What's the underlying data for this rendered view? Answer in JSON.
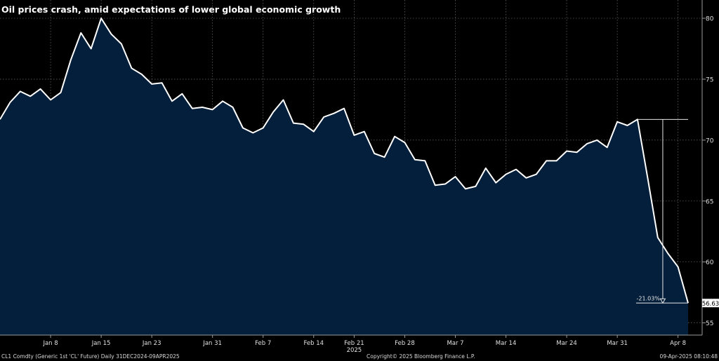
{
  "title": "Oil prices crash, amid expectations of lower global economic growth",
  "footer": {
    "left": "CL1 Comdty (Generic 1st 'CL' Future)  Daily 31DEC2024-09APR2025",
    "center": "Copyright© 2025 Bloomberg Finance L.P.",
    "right": "09-Apr-2025 08:10:48"
  },
  "colors": {
    "background": "#000000",
    "area_fill": "#041f3b",
    "line": "#ffffff",
    "grid": "#6a6a6a"
  },
  "chart_data": {
    "type": "area",
    "title": "Oil prices crash, amid expectations of lower global economic growth",
    "xlabel": "",
    "ylabel": "",
    "ylim": [
      54,
      81.5
    ],
    "grid": true,
    "y_ticks": [
      55,
      60,
      65,
      70,
      75,
      80
    ],
    "x_tick_labels": [
      {
        "label": "Jan 8",
        "date": "2025-01-08"
      },
      {
        "label": "Jan 15",
        "date": "2025-01-15"
      },
      {
        "label": "Jan 23",
        "date": "2025-01-23"
      },
      {
        "label": "Jan 31",
        "date": "2025-01-31"
      },
      {
        "label": "Feb 7",
        "date": "2025-02-07"
      },
      {
        "label": "Feb 14",
        "date": "2025-02-14"
      },
      {
        "label": "Feb 21",
        "date": "2025-02-21"
      },
      {
        "label": "Feb 28",
        "date": "2025-02-28"
      },
      {
        "label": "Mar 7",
        "date": "2025-03-07"
      },
      {
        "label": "Mar 14",
        "date": "2025-03-14"
      },
      {
        "label": "Mar 24",
        "date": "2025-03-24"
      },
      {
        "label": "Mar 31",
        "date": "2025-03-31"
      },
      {
        "label": "Apr 8",
        "date": "2025-04-08"
      }
    ],
    "year_label": "2025",
    "last_value_label": "56.63",
    "annotation": {
      "label": "-21.03%",
      "from_date": "2025-04-02",
      "from_value": 71.7,
      "to_date": "2025-04-09",
      "to_value": 56.63
    },
    "series": [
      {
        "values": [
          {
            "x": "2024-12-31",
            "y": 71.7
          },
          {
            "x": "2025-01-02",
            "y": 73.1
          },
          {
            "x": "2025-01-03",
            "y": 74.0
          },
          {
            "x": "2025-01-06",
            "y": 73.6
          },
          {
            "x": "2025-01-07",
            "y": 74.2
          },
          {
            "x": "2025-01-08",
            "y": 73.3
          },
          {
            "x": "2025-01-09",
            "y": 73.9
          },
          {
            "x": "2025-01-10",
            "y": 76.6
          },
          {
            "x": "2025-01-13",
            "y": 78.8
          },
          {
            "x": "2025-01-14",
            "y": 77.5
          },
          {
            "x": "2025-01-15",
            "y": 80.0
          },
          {
            "x": "2025-01-16",
            "y": 78.7
          },
          {
            "x": "2025-01-17",
            "y": 77.9
          },
          {
            "x": "2025-01-21",
            "y": 75.9
          },
          {
            "x": "2025-01-22",
            "y": 75.4
          },
          {
            "x": "2025-01-23",
            "y": 74.6
          },
          {
            "x": "2025-01-24",
            "y": 74.7
          },
          {
            "x": "2025-01-27",
            "y": 73.2
          },
          {
            "x": "2025-01-28",
            "y": 73.8
          },
          {
            "x": "2025-01-29",
            "y": 72.6
          },
          {
            "x": "2025-01-30",
            "y": 72.7
          },
          {
            "x": "2025-01-31",
            "y": 72.5
          },
          {
            "x": "2025-02-03",
            "y": 73.2
          },
          {
            "x": "2025-02-04",
            "y": 72.7
          },
          {
            "x": "2025-02-05",
            "y": 71.0
          },
          {
            "x": "2025-02-06",
            "y": 70.6
          },
          {
            "x": "2025-02-07",
            "y": 71.0
          },
          {
            "x": "2025-02-10",
            "y": 72.3
          },
          {
            "x": "2025-02-11",
            "y": 73.3
          },
          {
            "x": "2025-02-12",
            "y": 71.4
          },
          {
            "x": "2025-02-13",
            "y": 71.3
          },
          {
            "x": "2025-02-14",
            "y": 70.7
          },
          {
            "x": "2025-02-18",
            "y": 71.9
          },
          {
            "x": "2025-02-19",
            "y": 72.2
          },
          {
            "x": "2025-02-20",
            "y": 72.6
          },
          {
            "x": "2025-02-21",
            "y": 70.4
          },
          {
            "x": "2025-02-24",
            "y": 70.7
          },
          {
            "x": "2025-02-25",
            "y": 68.9
          },
          {
            "x": "2025-02-26",
            "y": 68.6
          },
          {
            "x": "2025-02-27",
            "y": 70.3
          },
          {
            "x": "2025-02-28",
            "y": 69.8
          },
          {
            "x": "2025-03-03",
            "y": 68.4
          },
          {
            "x": "2025-03-04",
            "y": 68.3
          },
          {
            "x": "2025-03-05",
            "y": 66.3
          },
          {
            "x": "2025-03-06",
            "y": 66.4
          },
          {
            "x": "2025-03-07",
            "y": 67.0
          },
          {
            "x": "2025-03-10",
            "y": 66.0
          },
          {
            "x": "2025-03-11",
            "y": 66.2
          },
          {
            "x": "2025-03-12",
            "y": 67.7
          },
          {
            "x": "2025-03-13",
            "y": 66.5
          },
          {
            "x": "2025-03-14",
            "y": 67.2
          },
          {
            "x": "2025-03-17",
            "y": 67.6
          },
          {
            "x": "2025-03-18",
            "y": 66.9
          },
          {
            "x": "2025-03-19",
            "y": 67.2
          },
          {
            "x": "2025-03-20",
            "y": 68.3
          },
          {
            "x": "2025-03-21",
            "y": 68.3
          },
          {
            "x": "2025-03-24",
            "y": 69.1
          },
          {
            "x": "2025-03-25",
            "y": 69.0
          },
          {
            "x": "2025-03-26",
            "y": 69.7
          },
          {
            "x": "2025-03-27",
            "y": 70.0
          },
          {
            "x": "2025-03-28",
            "y": 69.4
          },
          {
            "x": "2025-03-31",
            "y": 71.5
          },
          {
            "x": "2025-04-01",
            "y": 71.2
          },
          {
            "x": "2025-04-02",
            "y": 71.7
          },
          {
            "x": "2025-04-03",
            "y": 66.9
          },
          {
            "x": "2025-04-04",
            "y": 62.0
          },
          {
            "x": "2025-04-07",
            "y": 60.7
          },
          {
            "x": "2025-04-08",
            "y": 59.6
          },
          {
            "x": "2025-04-09",
            "y": 56.63
          }
        ]
      }
    ]
  }
}
